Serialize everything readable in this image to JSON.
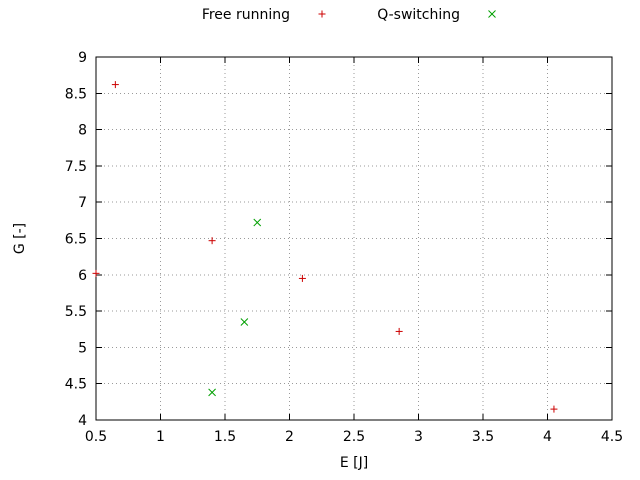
{
  "chart_data": {
    "type": "scatter",
    "title": "",
    "xlabel": "E [J]",
    "ylabel": "G [-]",
    "xlim": [
      0.5,
      4.5
    ],
    "ylim": [
      4,
      9
    ],
    "xtick_step": 0.5,
    "ytick_step": 0.5,
    "grid": "dotted",
    "legend_position": "top-center",
    "background": "#ffffff",
    "series": [
      {
        "name": "Free running",
        "marker": "plus",
        "color": "#cc0000",
        "points": [
          [
            0.5,
            6.02
          ],
          [
            0.65,
            8.62
          ],
          [
            1.4,
            6.47
          ],
          [
            2.1,
            5.95
          ],
          [
            2.85,
            5.22
          ],
          [
            4.05,
            4.15
          ]
        ]
      },
      {
        "name": "Q-switching",
        "marker": "cross",
        "color": "#00a000",
        "points": [
          [
            1.75,
            6.72
          ],
          [
            1.65,
            5.35
          ],
          [
            1.4,
            4.38
          ]
        ]
      }
    ]
  }
}
